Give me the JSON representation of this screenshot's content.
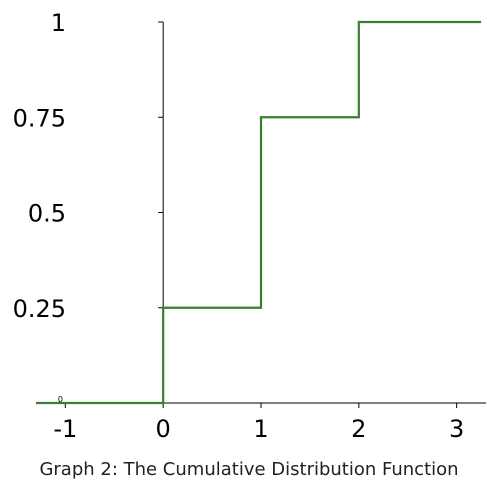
{
  "chart_data": {
    "type": "line",
    "subtype": "step",
    "caption": "Graph 2: The Cumulative Distribution Function",
    "xlim": [
      -1.3,
      3.3
    ],
    "ylim": [
      0,
      1
    ],
    "x_ticks": [
      {
        "value": -1,
        "label": "-1"
      },
      {
        "value": 0,
        "label": "0"
      },
      {
        "value": 1,
        "label": "1"
      },
      {
        "value": 2,
        "label": "2"
      },
      {
        "value": 3,
        "label": "3"
      }
    ],
    "y_ticks": [
      {
        "value": 0.25,
        "label": "0.25"
      },
      {
        "value": 0.5,
        "label": "0.5"
      },
      {
        "value": 0.75,
        "label": "0.75"
      },
      {
        "value": 1,
        "label": "1"
      }
    ],
    "origin_label": "0",
    "series": [
      {
        "color": "#3a7d33",
        "points": [
          {
            "x": -1.3,
            "y": 0
          },
          {
            "x": 0,
            "y": 0
          },
          {
            "x": 0,
            "y": 0.25
          },
          {
            "x": 1,
            "y": 0.25
          },
          {
            "x": 1,
            "y": 0.75
          },
          {
            "x": 2,
            "y": 0.75
          },
          {
            "x": 2,
            "y": 1
          },
          {
            "x": 3.25,
            "y": 1
          }
        ]
      }
    ],
    "grid": false,
    "axis_color": "#000000"
  }
}
